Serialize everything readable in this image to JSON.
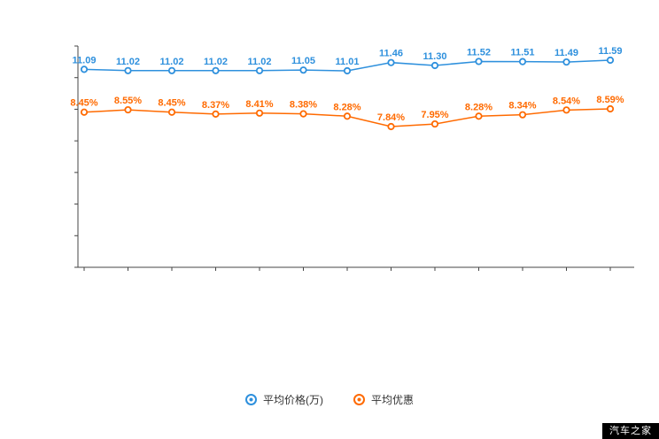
{
  "watermark": {
    "text": "汽车之家"
  },
  "chart_data": {
    "type": "line",
    "title": "",
    "xlabel": "",
    "ylabel": "",
    "grid": false,
    "legend_position": "bottom",
    "point_count": 13,
    "series": [
      {
        "name": "平均价格(万)",
        "color": "#2e90dd",
        "values": [
          11.09,
          11.02,
          11.02,
          11.02,
          11.02,
          11.05,
          11.01,
          11.46,
          11.3,
          11.52,
          11.51,
          11.49,
          11.59
        ],
        "labels": [
          "11.09",
          "11.02",
          "11.02",
          "11.02",
          "11.02",
          "11.05",
          "11.01",
          "11.46",
          "11.30",
          "11.52",
          "11.51",
          "11.49",
          "11.59"
        ]
      },
      {
        "name": "平均优惠",
        "color": "#ff6a00",
        "values": [
          8.45,
          8.55,
          8.45,
          8.37,
          8.41,
          8.38,
          8.28,
          7.84,
          7.95,
          8.28,
          8.34,
          8.54,
          8.59
        ],
        "labels": [
          "8.45%",
          "8.55%",
          "8.45%",
          "8.37%",
          "8.41%",
          "8.38%",
          "8.28%",
          "7.84%",
          "7.95%",
          "8.28%",
          "8.34%",
          "8.54%",
          "8.59%"
        ]
      }
    ]
  }
}
